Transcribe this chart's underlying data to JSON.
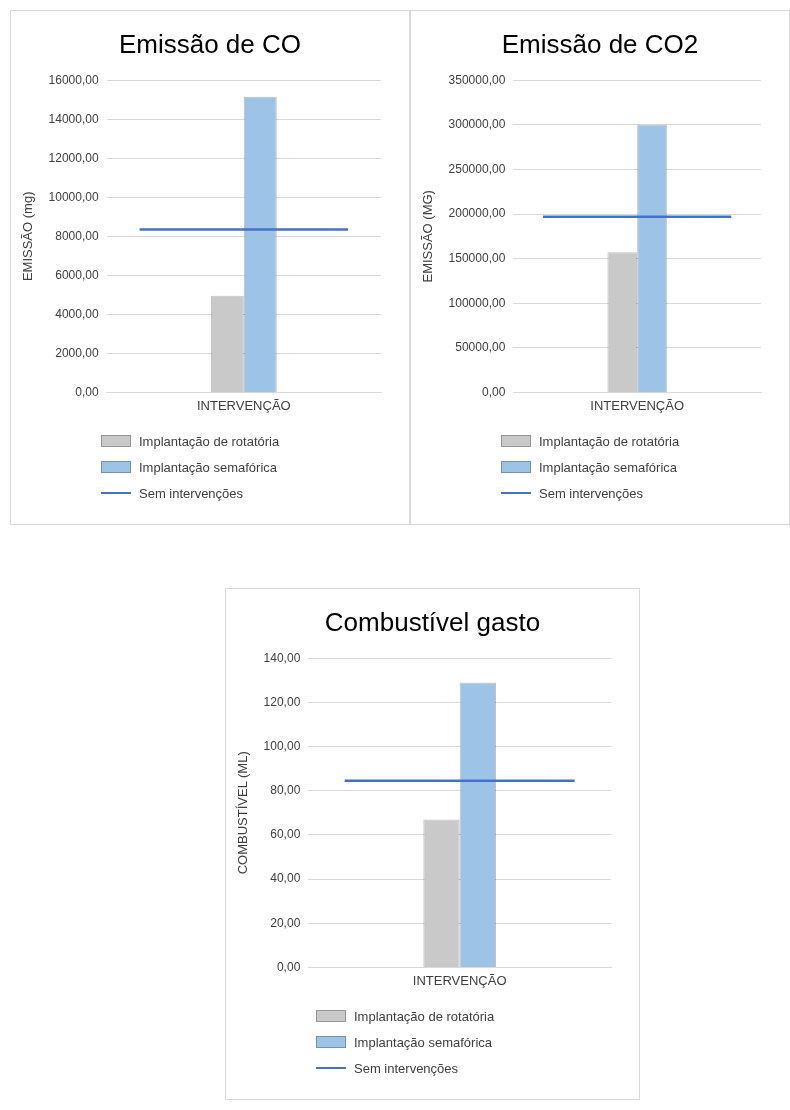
{
  "chart_data": [
    {
      "type": "bar",
      "title": "Emissão de CO",
      "ylabel": "EMISSÃO (mg)",
      "categories": [
        "INTERVENÇÃO"
      ],
      "series": [
        {
          "name": "Implantação de rotatória",
          "color": "#c9c9c9",
          "values": [
            4950
          ]
        },
        {
          "name": "Implantação semafórica",
          "color": "#9dc3e6",
          "values": [
            15150
          ]
        }
      ],
      "ref_lines": [
        {
          "axis": "y",
          "value": 8350,
          "label": "Sem intervenções",
          "color": "#4472c4"
        }
      ],
      "ylim": [
        0,
        16000
      ],
      "yticks": [
        {
          "value": 0,
          "label": "0,00"
        },
        {
          "value": 2000,
          "label": "2000,00"
        },
        {
          "value": 4000,
          "label": "4000,00"
        },
        {
          "value": 6000,
          "label": "6000,00"
        },
        {
          "value": 8000,
          "label": "8000,00"
        },
        {
          "value": 10000,
          "label": "10000,00"
        },
        {
          "value": 12000,
          "label": "12000,00"
        },
        {
          "value": 14000,
          "label": "14000,00"
        },
        {
          "value": 16000,
          "label": "16000,00"
        }
      ],
      "grid": "y",
      "legend": "bottom"
    },
    {
      "type": "bar",
      "title": "Emissão de CO2",
      "ylabel": "EMISSÃO (MG)",
      "categories": [
        "INTERVENÇÃO"
      ],
      "series": [
        {
          "name": "Implantação de rotatória",
          "color": "#c9c9c9",
          "values": [
            157000
          ]
        },
        {
          "name": "Implantação semafórica",
          "color": "#9dc3e6",
          "values": [
            300000
          ]
        }
      ],
      "ref_lines": [
        {
          "axis": "y",
          "value": 197000,
          "label": "Sem intervenções",
          "color": "#4472c4"
        }
      ],
      "ylim": [
        0,
        350000
      ],
      "yticks": [
        {
          "value": 0,
          "label": "0,00"
        },
        {
          "value": 50000,
          "label": "50000,00"
        },
        {
          "value": 100000,
          "label": "100000,00"
        },
        {
          "value": 150000,
          "label": "150000,00"
        },
        {
          "value": 200000,
          "label": "200000,00"
        },
        {
          "value": 250000,
          "label": "250000,00"
        },
        {
          "value": 300000,
          "label": "300000,00"
        },
        {
          "value": 350000,
          "label": "350000,00"
        }
      ],
      "grid": "y",
      "legend": "bottom"
    },
    {
      "type": "bar",
      "title": "Combustível gasto",
      "ylabel": "COMBUSTÍVEL (ML)",
      "categories": [
        "INTERVENÇÃO"
      ],
      "series": [
        {
          "name": "Implantação de rotatória",
          "color": "#c9c9c9",
          "values": [
            67
          ]
        },
        {
          "name": "Implantação semafórica",
          "color": "#9dc3e6",
          "values": [
            129
          ]
        }
      ],
      "ref_lines": [
        {
          "axis": "y",
          "value": 84.5,
          "label": "Sem intervenções",
          "color": "#4472c4"
        }
      ],
      "ylim": [
        0,
        140
      ],
      "yticks": [
        {
          "value": 0,
          "label": "0,00"
        },
        {
          "value": 20,
          "label": "20,00"
        },
        {
          "value": 40,
          "label": "40,00"
        },
        {
          "value": 60,
          "label": "60,00"
        },
        {
          "value": 80,
          "label": "80,00"
        },
        {
          "value": 100,
          "label": "100,00"
        },
        {
          "value": 120,
          "label": "120,00"
        },
        {
          "value": 140,
          "label": "140,00"
        }
      ],
      "grid": "y",
      "legend": "bottom"
    }
  ]
}
